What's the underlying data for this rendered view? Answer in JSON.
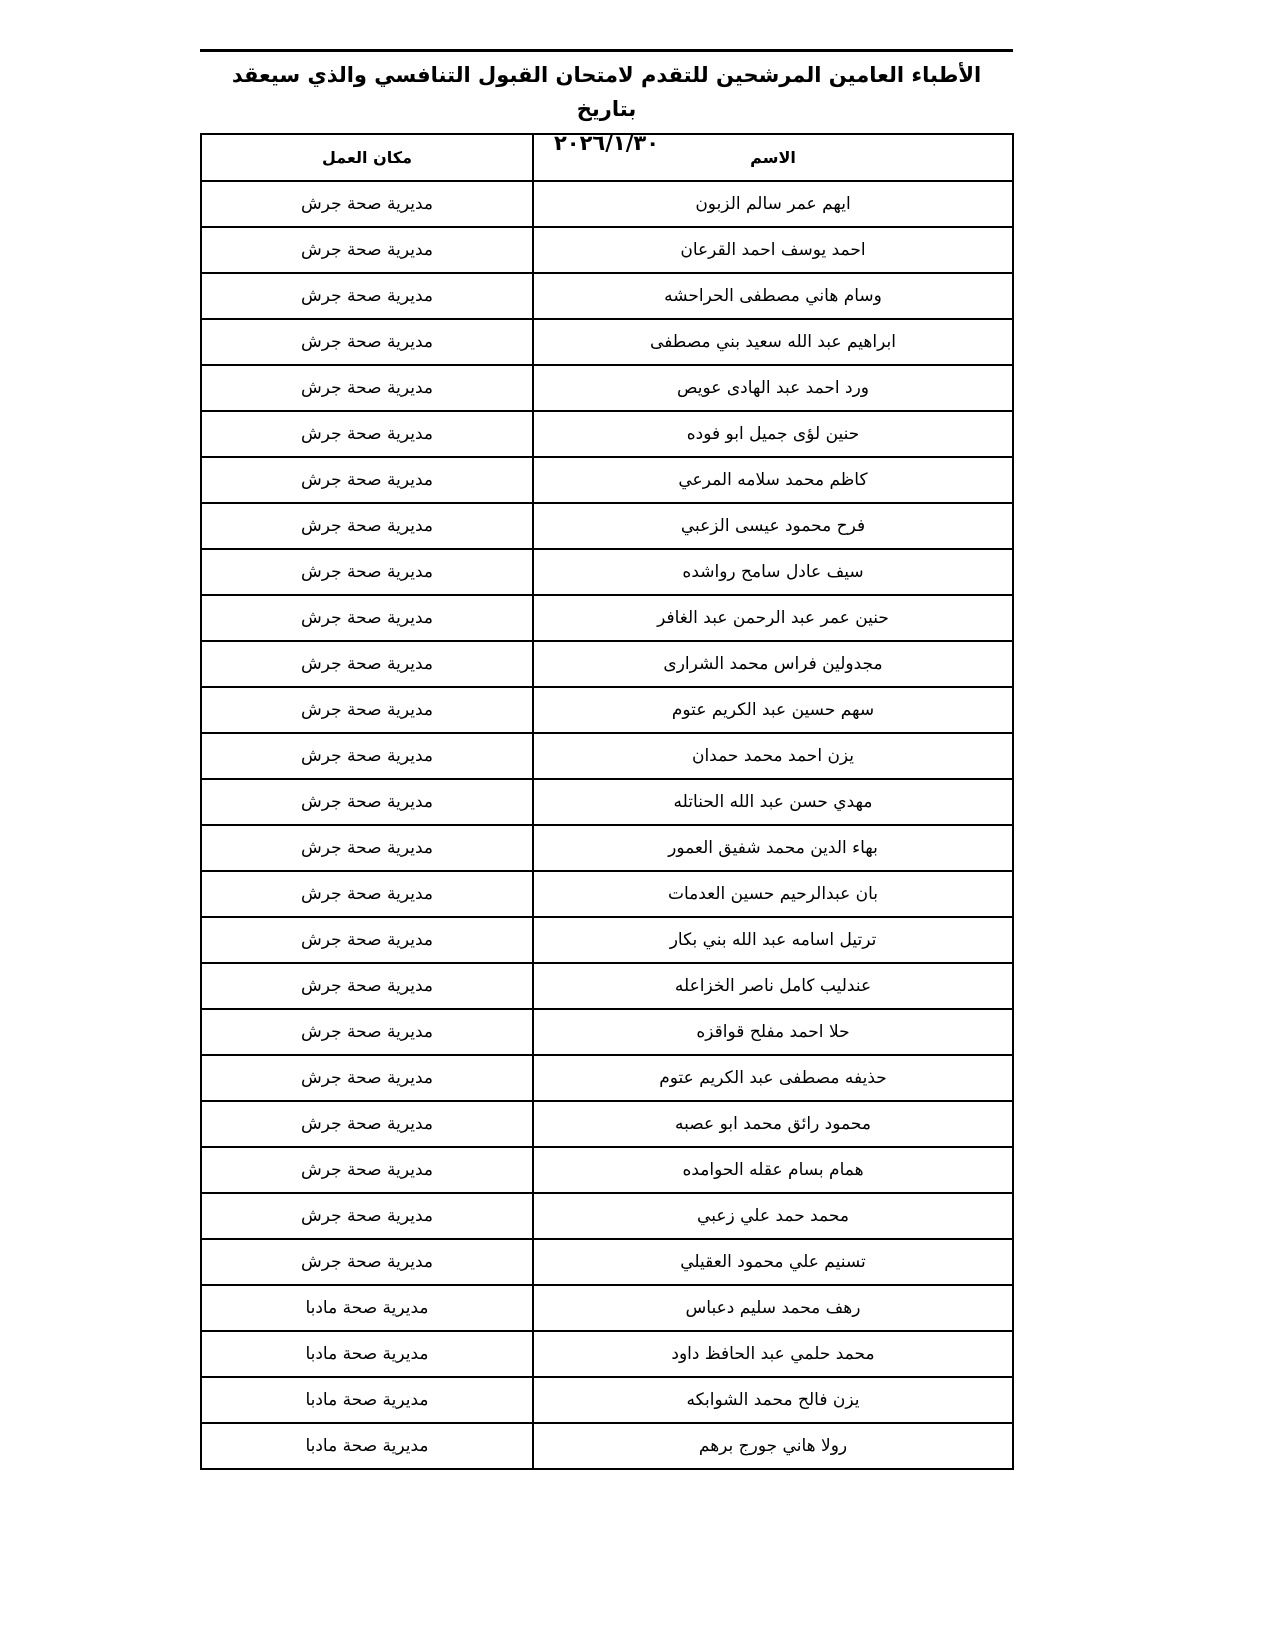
{
  "title": {
    "line1": "الأطباء العامين المرشحين للتقدم لامتحان القبول التنافسي والذي سيعقد بتاريخ",
    "line2": "٢٠٢٦/١/٣٠"
  },
  "table": {
    "headers": {
      "name": "الاسم",
      "workplace": "مكان العمل"
    },
    "rows": [
      {
        "name": "ايهم عمر سالم الزبون",
        "workplace": "مديرية صحة جرش"
      },
      {
        "name": "احمد يوسف احمد القرعان",
        "workplace": "مديرية صحة جرش"
      },
      {
        "name": "وسام هاني مصطفى الحراحشه",
        "workplace": "مديرية صحة جرش"
      },
      {
        "name": "ابراهيم عبد الله سعيد بني مصطفى",
        "workplace": "مديرية صحة جرش"
      },
      {
        "name": "ورد احمد عبد الهادى عويص",
        "workplace": "مديرية صحة جرش"
      },
      {
        "name": "حنين لؤى جميل ابو فوده",
        "workplace": "مديرية صحة جرش"
      },
      {
        "name": "كاظم محمد سلامه المرعي",
        "workplace": "مديرية صحة جرش"
      },
      {
        "name": "فرح محمود عيسى الزعبي",
        "workplace": "مديرية صحة جرش"
      },
      {
        "name": "سيف عادل سامح رواشده",
        "workplace": "مديرية صحة جرش"
      },
      {
        "name": "حنين عمر عبد الرحمن عبد الغافر",
        "workplace": "مديرية صحة جرش"
      },
      {
        "name": "مجدولين فراس محمد الشرارى",
        "workplace": "مديرية صحة جرش"
      },
      {
        "name": "سهم حسين عبد الكريم عتوم",
        "workplace": "مديرية صحة جرش"
      },
      {
        "name": "يزن احمد محمد حمدان",
        "workplace": "مديرية صحة جرش"
      },
      {
        "name": "مهدي حسن عبد الله الحناتله",
        "workplace": "مديرية صحة جرش"
      },
      {
        "name": "بهاء الدين محمد شفيق العمور",
        "workplace": "مديرية صحة جرش"
      },
      {
        "name": "بان عبدالرحيم حسين العدمات",
        "workplace": "مديرية صحة جرش"
      },
      {
        "name": "ترتيل اسامه عبد الله بني بكار",
        "workplace": "مديرية صحة جرش"
      },
      {
        "name": "عندليب كامل ناصر الخزاعله",
        "workplace": "مديرية صحة جرش"
      },
      {
        "name": "حلا احمد مفلح قواقزه",
        "workplace": "مديرية صحة جرش"
      },
      {
        "name": "حذيفه مصطفى عبد الكريم عتوم",
        "workplace": "مديرية صحة جرش"
      },
      {
        "name": "محمود رائق محمد ابو عصبه",
        "workplace": "مديرية صحة جرش"
      },
      {
        "name": "همام بسام عقله الحوامده",
        "workplace": "مديرية صحة جرش"
      },
      {
        "name": "محمد حمد علي زعبي",
        "workplace": "مديرية صحة جرش"
      },
      {
        "name": "تسنيم علي محمود العقيلي",
        "workplace": "مديرية صحة جرش"
      },
      {
        "name": "رهف محمد سليم دعباس",
        "workplace": "مديرية صحة مادبا"
      },
      {
        "name": "محمد حلمي عبد  الحافظ داود",
        "workplace": "مديرية صحة مادبا"
      },
      {
        "name": "يزن فالح محمد الشوابكه",
        "workplace": "مديرية صحة مادبا"
      },
      {
        "name": "رولا هاني جورج برهم",
        "workplace": "مديرية صحة مادبا"
      }
    ]
  }
}
